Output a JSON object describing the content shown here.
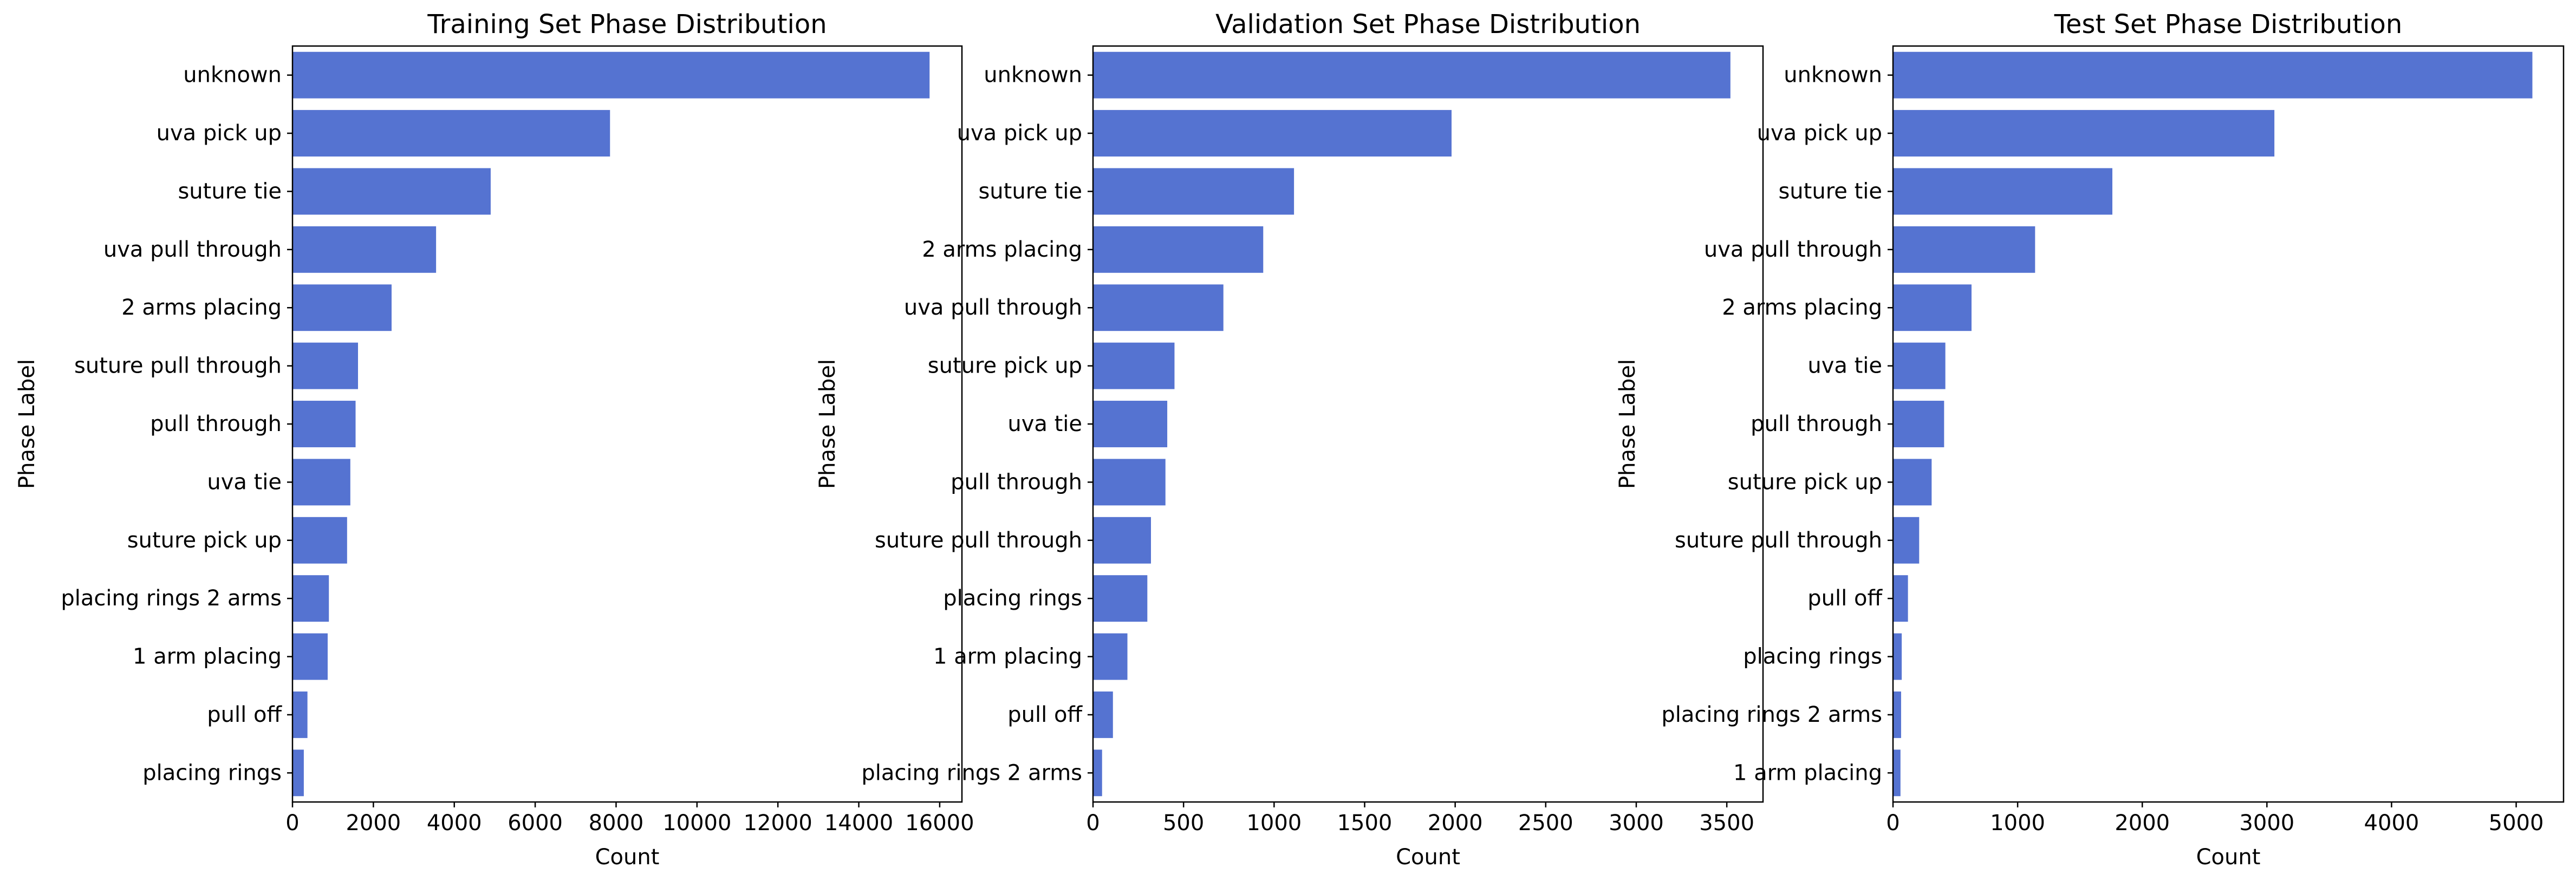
{
  "chart_data": [
    {
      "type": "bar",
      "orientation": "horizontal",
      "title": "Training Set Phase Distribution",
      "xlabel": "Count",
      "ylabel": "Phase Label",
      "categories": [
        "unknown",
        "uva pick up",
        "suture tie",
        "uva pull through",
        "2 arms placing",
        "suture pull through",
        "pull through",
        "uva tie",
        "suture pick up",
        "placing rings 2 arms",
        "1 arm placing",
        "pull off",
        "placing rings"
      ],
      "values": [
        15750,
        7850,
        4900,
        3550,
        2450,
        1620,
        1560,
        1430,
        1350,
        900,
        870,
        370,
        280
      ],
      "xticks": [
        0,
        2000,
        4000,
        6000,
        8000,
        10000,
        12000,
        14000,
        16000
      ],
      "xlim": [
        0,
        16550
      ],
      "color": "#5573d1",
      "grid": false
    },
    {
      "type": "bar",
      "orientation": "horizontal",
      "title": "Validation Set Phase Distribution",
      "xlabel": "Count",
      "ylabel": "Phase Label",
      "categories": [
        "unknown",
        "uva pick up",
        "suture tie",
        "2 arms placing",
        "uva pull through",
        "suture pick up",
        "uva tie",
        "pull through",
        "suture pull through",
        "placing rings",
        "1 arm placing",
        "pull off",
        "placing rings 2 arms"
      ],
      "values": [
        3520,
        1980,
        1110,
        940,
        720,
        450,
        410,
        400,
        320,
        300,
        190,
        110,
        50
      ],
      "xticks": [
        0,
        500,
        1000,
        1500,
        2000,
        2500,
        3000,
        3500
      ],
      "xlim": [
        0,
        3700
      ],
      "color": "#5573d1",
      "grid": false
    },
    {
      "type": "bar",
      "orientation": "horizontal",
      "title": "Test Set Phase Distribution",
      "xlabel": "Count",
      "ylabel": "Phase Label",
      "categories": [
        "unknown",
        "uva pick up",
        "suture tie",
        "uva pull through",
        "2 arms placing",
        "uva tie",
        "pull through",
        "suture pick up",
        "suture pull through",
        "pull off",
        "placing rings",
        "placing rings 2 arms",
        "1 arm placing"
      ],
      "values": [
        5130,
        3060,
        1760,
        1140,
        630,
        420,
        410,
        310,
        210,
        120,
        70,
        65,
        60
      ],
      "xticks": [
        0,
        1000,
        2000,
        3000,
        4000,
        5000
      ],
      "xlim": [
        0,
        5380
      ],
      "color": "#5573d1",
      "grid": false
    }
  ]
}
